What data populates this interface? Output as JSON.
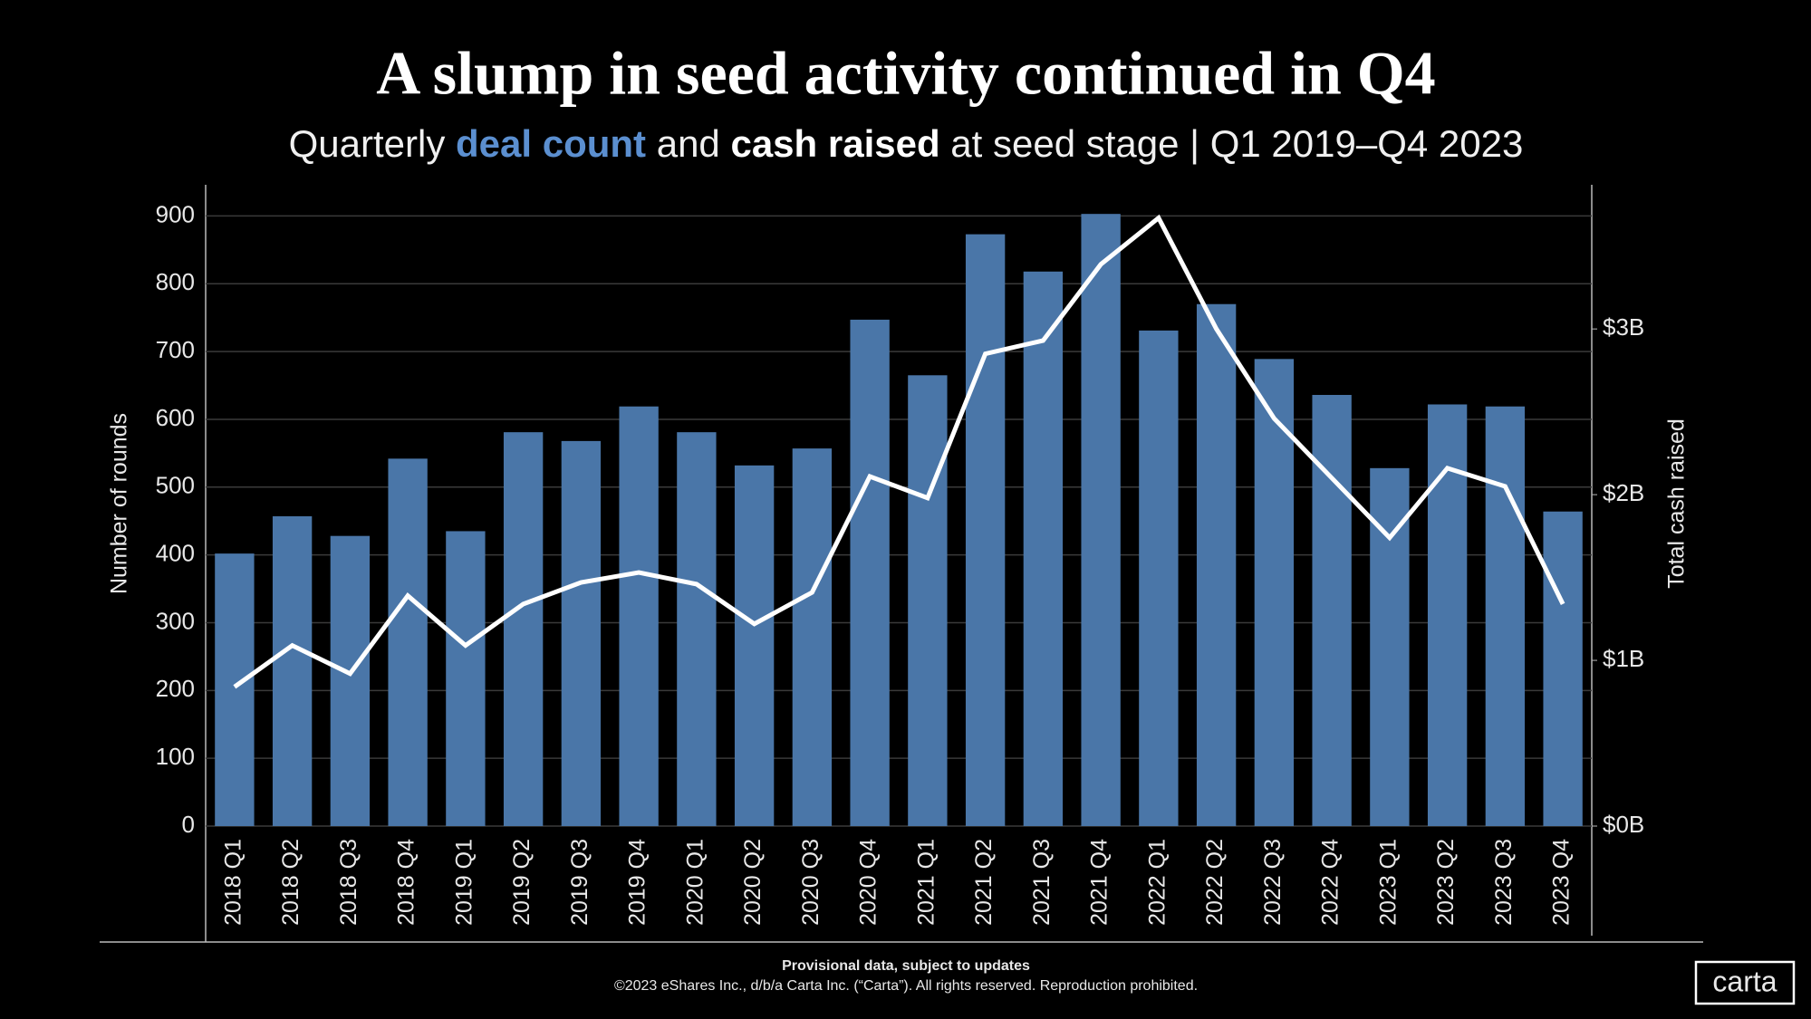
{
  "chart_data": {
    "type": "bar",
    "title": "A slump in seed activity continued in Q4",
    "subtitle": [
      "Quarterly",
      "and",
      "at seed stage | Q1 2019–Q4 2023"
    ],
    "categories": [
      "2018 Q1",
      "2018 Q2",
      "2018 Q3",
      "2018 Q4",
      "2019 Q1",
      "2019 Q2",
      "2019 Q3",
      "2019 Q4",
      "2020 Q1",
      "2020 Q2",
      "2020 Q3",
      "2020 Q4",
      "2021 Q1",
      "2021 Q2",
      "2021 Q3",
      "2021 Q4",
      "2022 Q1",
      "2022 Q2",
      "2022 Q3",
      "2022 Q4",
      "2023 Q1",
      "2023 Q2",
      "2023 Q3",
      "2023 Q4"
    ],
    "series": [
      {
        "name": "deal count",
        "type": "bar",
        "color": "#4a76a8",
        "values": [
          402,
          457,
          428,
          542,
          435,
          581,
          568,
          619,
          581,
          532,
          557,
          747,
          665,
          873,
          818,
          903,
          731,
          770,
          689,
          636,
          528,
          622,
          619,
          464
        ]
      },
      {
        "name": "cash raised",
        "type": "line",
        "color": "#ffffff",
        "axis": "y2",
        "values": [
          0.84,
          1.09,
          0.92,
          1.39,
          1.09,
          1.34,
          1.47,
          1.53,
          1.46,
          1.22,
          1.41,
          2.11,
          1.98,
          2.85,
          2.93,
          3.39,
          3.67,
          3.0,
          2.46,
          2.1,
          1.74,
          2.16,
          2.05,
          1.34
        ]
      }
    ],
    "ylabel": "Number of rounds",
    "y2label": "Total cash raised",
    "ylim": [
      0,
      946
    ],
    "yticks": [
      0,
      100,
      200,
      300,
      400,
      500,
      600,
      700,
      800,
      900
    ],
    "y2lim": [
      0,
      3.87
    ],
    "y2ticks": [
      {
        "value": 0,
        "label": "$0B"
      },
      {
        "value": 1,
        "label": "$1B"
      },
      {
        "value": 2,
        "label": "$2B"
      },
      {
        "value": 3,
        "label": "$3B"
      }
    ],
    "grid": true,
    "note": "Provisional data, subject to updates",
    "copyright": "©2023 eShares Inc., d/b/a Carta Inc. (“Carta”). All rights reserved. Reproduction prohibited.",
    "logo": "carta"
  }
}
